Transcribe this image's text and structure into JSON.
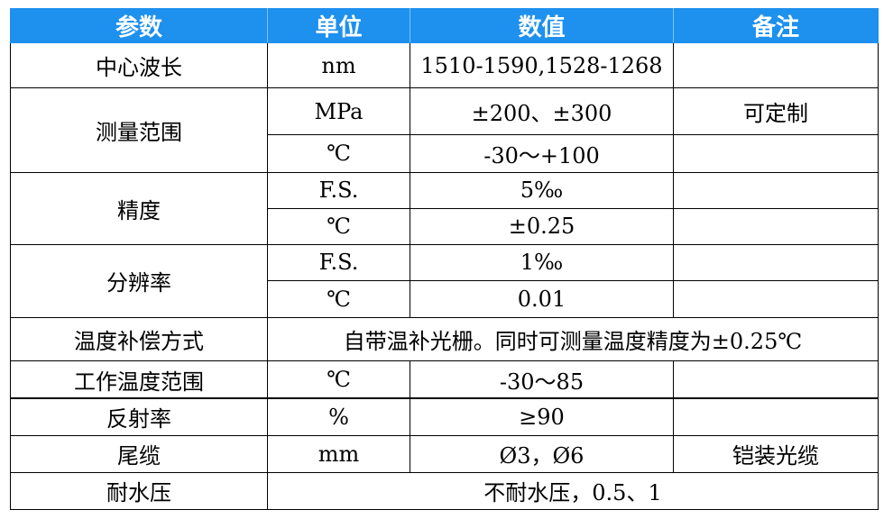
{
  "header": {
    "param": "参数",
    "unit": "单位",
    "value": "数值",
    "note": "备注"
  },
  "rows": {
    "wavelength": {
      "param": "中心波长",
      "unit": "nm",
      "value": "1510-1590,1528-1268",
      "note": ""
    },
    "range": {
      "param": "测量范围",
      "unit_1": "MPa",
      "value_1": "±200、±300",
      "note_1": "可定制",
      "unit_2": "℃",
      "value_2": "-30～+100",
      "note_2": ""
    },
    "accuracy": {
      "param": "精度",
      "unit_1": "F.S.",
      "value_1": "5‰",
      "unit_2": "℃",
      "value_2": "±0.25",
      "note_1": "",
      "note_2": ""
    },
    "resolution": {
      "param": "分辨率",
      "unit_1": "F.S.",
      "value_1": "1‰",
      "unit_2": "℃",
      "value_2": "0.01",
      "note_1": "",
      "note_2": ""
    },
    "compensation": {
      "param": "温度补偿方式",
      "value": "自带温补光栅。同时可测量温度精度为±0.25℃"
    },
    "operating_temp": {
      "param": "工作温度范围",
      "unit": "℃",
      "value": "-30～85",
      "note": ""
    },
    "reflectivity": {
      "param": "反射率",
      "unit": "%",
      "value": "≥90",
      "note": ""
    },
    "pigtail": {
      "param": "尾缆",
      "unit": "mm",
      "value": "Ø3，Ø6",
      "note": "铠装光缆"
    },
    "water_pressure": {
      "param": "耐水压",
      "value": "不耐水压，0.5、1"
    }
  }
}
